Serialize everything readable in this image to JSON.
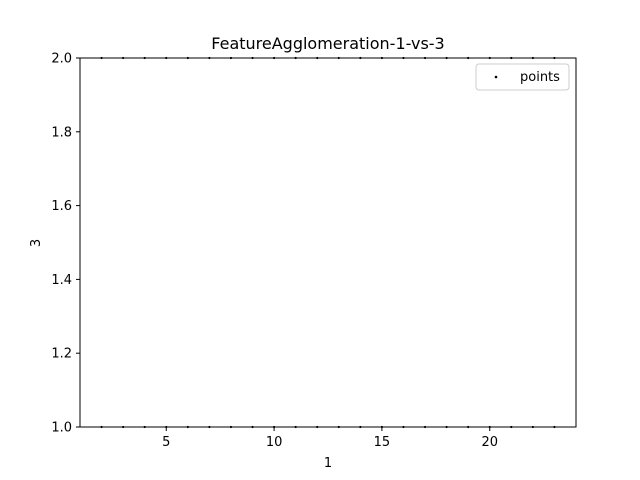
{
  "chart_data": {
    "type": "scatter",
    "title": "FeatureAgglomeration-1-vs-3",
    "xlabel": "1",
    "ylabel": "3",
    "xlim": [
      1,
      24
    ],
    "ylim": [
      1.0,
      2.0
    ],
    "x_ticks": [
      5,
      10,
      15,
      20
    ],
    "x_tick_labels": [
      "5",
      "10",
      "15",
      "20"
    ],
    "y_ticks": [
      1.0,
      1.2,
      1.4,
      1.6,
      1.8,
      2.0
    ],
    "y_tick_labels": [
      "1.0",
      "1.2",
      "1.4",
      "1.6",
      "1.8",
      "2.0"
    ],
    "grid": false,
    "legend_position": "top-right",
    "marker_color": "#000000",
    "series": [
      {
        "name": "points",
        "points": [
          [
            2,
            1
          ],
          [
            3,
            1
          ],
          [
            4,
            1
          ],
          [
            5,
            1
          ],
          [
            6,
            1
          ],
          [
            7,
            1
          ],
          [
            8,
            1
          ],
          [
            9,
            1
          ],
          [
            10,
            1
          ],
          [
            11,
            1
          ],
          [
            12,
            1
          ],
          [
            13,
            1
          ],
          [
            14,
            1
          ],
          [
            15,
            1
          ],
          [
            16,
            1
          ],
          [
            17,
            1
          ],
          [
            18,
            1
          ],
          [
            19,
            1
          ],
          [
            20,
            1
          ],
          [
            21,
            1
          ],
          [
            22,
            1
          ],
          [
            23,
            1
          ],
          [
            2,
            2
          ],
          [
            3,
            2
          ],
          [
            4,
            2
          ],
          [
            5,
            2
          ],
          [
            6,
            2
          ],
          [
            7,
            2
          ],
          [
            8,
            2
          ],
          [
            9,
            2
          ],
          [
            10,
            2
          ],
          [
            11,
            2
          ],
          [
            12,
            2
          ],
          [
            13,
            2
          ],
          [
            14,
            2
          ],
          [
            15,
            2
          ],
          [
            16,
            2
          ],
          [
            17,
            2
          ],
          [
            18,
            2
          ],
          [
            19,
            2
          ],
          [
            20,
            2
          ],
          [
            21,
            2
          ],
          [
            22,
            2
          ],
          [
            23,
            2
          ]
        ]
      }
    ]
  }
}
